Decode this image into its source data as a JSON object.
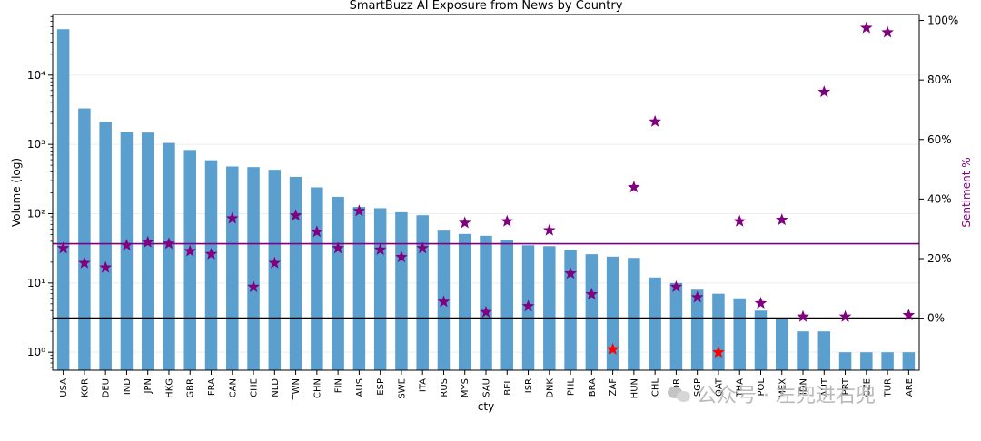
{
  "chart_data": {
    "type": "bar",
    "title": "SmartBuzz AI Exposure from News  by Country",
    "xlabel": "cty",
    "ylabel": "Volume (log)",
    "y2label": "Sentiment %",
    "yscale": "log",
    "ylim": [
      0.55,
      75000
    ],
    "y2lim": [
      -17.5,
      102
    ],
    "categories": [
      "USA",
      "KOR",
      "DEU",
      "IND",
      "JPN",
      "HKG",
      "GBR",
      "FRA",
      "CAN",
      "CHE",
      "NLD",
      "TWN",
      "CHN",
      "FIN",
      "AUS",
      "ESP",
      "SWE",
      "ITA",
      "RUS",
      "MYS",
      "SAU",
      "BEL",
      "ISR",
      "DNK",
      "PHL",
      "BRA",
      "ZAF",
      "HUN",
      "CHL",
      "NOR",
      "SGP",
      "QAT",
      "THA",
      "POL",
      "MEX",
      "IDN",
      "AUT",
      "PRT",
      "CZE",
      "TUR",
      "ARE"
    ],
    "yticks": [
      1,
      10,
      100,
      1000,
      10000
    ],
    "ytick_labels": [
      "10⁰",
      "10¹",
      "10²",
      "10³",
      "10⁴"
    ],
    "y2ticks": [
      0,
      20,
      40,
      60,
      80,
      100
    ],
    "y2tick_labels": [
      "0%",
      "20%",
      "40%",
      "60%",
      "80%",
      "100%"
    ],
    "series": [
      {
        "kind": "bar",
        "color": "#5b9fcf",
        "values": [
          46000,
          3300,
          2100,
          1500,
          1480,
          1050,
          830,
          590,
          480,
          470,
          430,
          340,
          240,
          175,
          125,
          120,
          105,
          95,
          57,
          51,
          48,
          42,
          35,
          34,
          30,
          26,
          24,
          23,
          12,
          10,
          8,
          7,
          6,
          4,
          3,
          2,
          2,
          1,
          1,
          1,
          1
        ]
      },
      {
        "kind": "star",
        "colors": {
          "positive": "#800080",
          "negative": "#ff0000"
        },
        "values": [
          23.5,
          18.5,
          17,
          24.5,
          25.5,
          25,
          22.5,
          21.5,
          33.5,
          10.5,
          18.5,
          34.5,
          29,
          23.5,
          36,
          23,
          20.5,
          23.5,
          5.5,
          32,
          2,
          32.5,
          4,
          29.5,
          15,
          8,
          -10.5,
          44,
          66,
          10.5,
          7,
          -11.5,
          32.5,
          5,
          33,
          0.5,
          76,
          0.5,
          97.5,
          96,
          1
        ]
      }
    ],
    "hlines": [
      {
        "axis": "y2",
        "value": 0,
        "color": "#000000"
      },
      {
        "axis": "y2",
        "value": 25,
        "color": "#800080"
      }
    ],
    "grid": true,
    "legend": "none"
  },
  "watermark": {
    "text": "公众号 · 左兜进右兜",
    "color": "#b9b9b9"
  }
}
